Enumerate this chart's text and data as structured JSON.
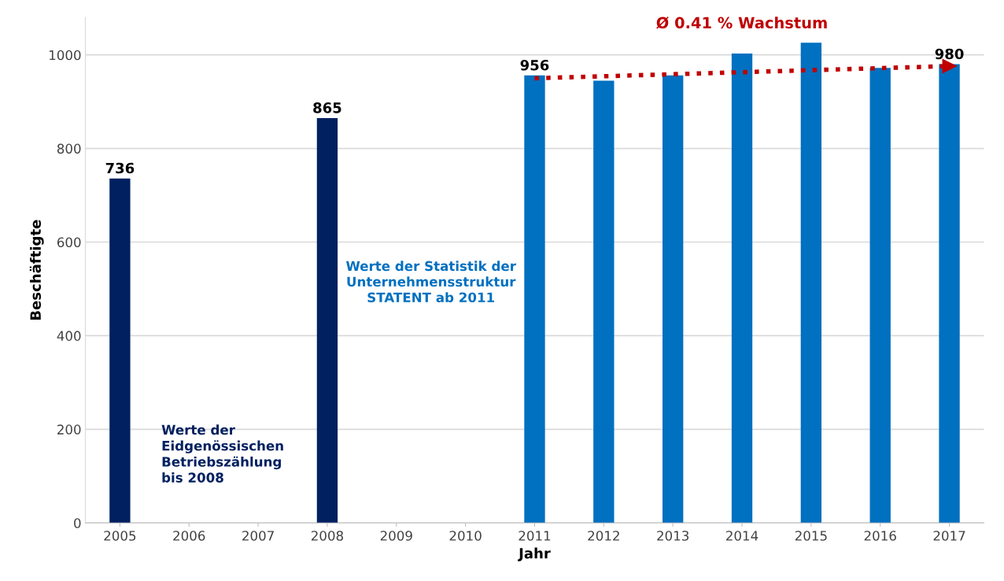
{
  "chart_data": {
    "type": "bar",
    "xlabel": "Jahr",
    "ylabel": "Beschäftigte",
    "categories": [
      "2005",
      "2006",
      "2007",
      "2008",
      "2009",
      "2010",
      "2011",
      "2012",
      "2013",
      "2014",
      "2015",
      "2016",
      "2017"
    ],
    "series": [
      {
        "color": "#002060",
        "values": [
          736,
          null,
          null,
          865,
          null,
          null,
          null,
          null,
          null,
          null,
          null,
          null,
          null
        ],
        "value_labels": [
          "736",
          null,
          null,
          "865",
          null,
          null,
          null,
          null,
          null,
          null,
          null,
          null,
          null
        ]
      },
      {
        "color": "#0070c0",
        "values": [
          null,
          null,
          null,
          null,
          null,
          null,
          956,
          945,
          956,
          1003,
          1026,
          972,
          980
        ],
        "value_labels": [
          null,
          null,
          null,
          null,
          null,
          null,
          "956",
          null,
          null,
          null,
          null,
          null,
          "980"
        ]
      },
      {
        "type": "line",
        "color": "#c00000",
        "line_style": "dotted",
        "values": [
          null,
          null,
          null,
          null,
          null,
          null,
          950,
          null,
          null,
          null,
          null,
          null,
          976
        ]
      }
    ],
    "ylim": [
      0,
      1080
    ],
    "yticks": [
      0,
      200,
      400,
      600,
      800,
      1000
    ],
    "grid": "y",
    "annotations": [
      "Ø 0.41 % Wachstum",
      "Werte der\nEidgenössischen\nBetriebszählung\nbis 2008",
      "Werte der Statistik der\nUnternehmensstruktur\nSTATENT ab 2011"
    ]
  }
}
